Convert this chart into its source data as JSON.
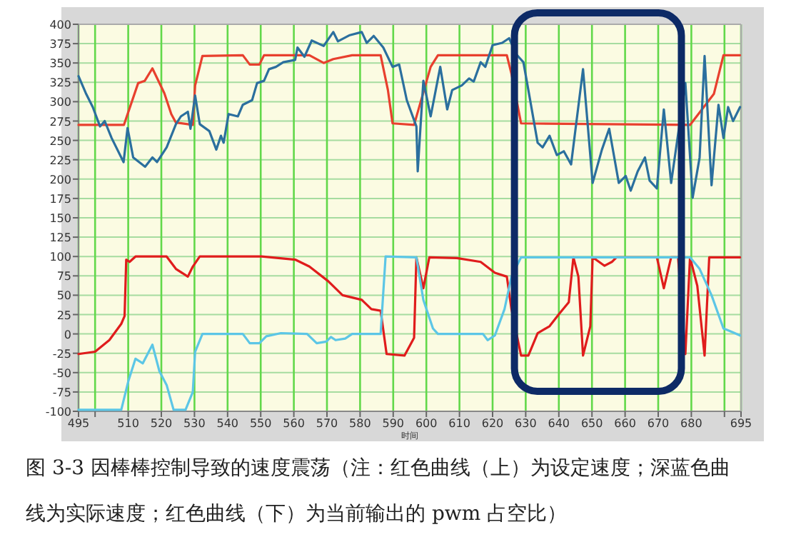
{
  "chart_data": {
    "type": "line",
    "xlabel": "时间",
    "annotations": [
      "图 3-3 因棒棒控制导致的速度震荡（注：红色曲线（上）为设定速度；深蓝色曲线为实际速度；红色曲线（下）为当前输出的 pwm 占空比）"
    ],
    "xlim": [
      495,
      695
    ],
    "ylim": [
      -100,
      400
    ],
    "xticks": [
      495,
      {
        "value": 500,
        "label": null
      },
      510,
      520,
      530,
      540,
      550,
      560,
      570,
      580,
      590,
      600,
      610,
      620,
      630,
      640,
      650,
      660,
      670,
      680,
      {
        "value": 690,
        "label": null
      },
      695
    ],
    "yticks": [
      -100,
      -75,
      -50,
      -25,
      0,
      25,
      50,
      75,
      100,
      125,
      150,
      175,
      200,
      225,
      250,
      275,
      300,
      325,
      350,
      375,
      400
    ],
    "grid": true,
    "series": [
      {
        "color": "#e8402e",
        "x": [
          495,
          508.7,
          513,
          515,
          517.3,
          520.9,
          523,
          524.4,
          529.5,
          530.2,
          532.4,
          544.6,
          546.7,
          549.6,
          551,
          564.7,
          569,
          571.9,
          577.6,
          586.2,
          588.4,
          589.8,
          596.3,
          601.3,
          603.5,
          624.3,
          625.7,
          628.6,
          679.6,
          686.8,
          689.7,
          694.7
        ],
        "values": [
          270,
          270,
          324,
          327,
          343,
          311,
          284,
          273,
          270,
          321,
          359,
          360,
          348,
          348,
          360,
          360,
          350,
          355,
          360,
          360,
          315,
          272,
          270,
          345,
          360,
          360,
          336,
          272,
          270,
          310,
          360,
          360
        ]
      },
      {
        "color": "#2b6f9e",
        "x": [
          495,
          497.2,
          499.3,
          501.5,
          502.9,
          505,
          508.6,
          509.8,
          511.5,
          515.1,
          517.3,
          518.7,
          521.6,
          524.4,
          525.9,
          528,
          528.8,
          530.2,
          531.6,
          534.5,
          536.6,
          538,
          538.8,
          540.3,
          543.1,
          544.6,
          547.4,
          548.9,
          551,
          552.5,
          554.6,
          556.8,
          560.4,
          561.1,
          563.2,
          565.4,
          569,
          571.9,
          573.3,
          576.9,
          580.5,
          582,
          584.1,
          587,
          589.8,
          591.8,
          594.1,
          597,
          597.4,
          599.1,
          601.3,
          604.2,
          606.3,
          607.8,
          610.7,
          612.9,
          614.3,
          616.4,
          617.8,
          620,
          622.9,
          625,
          627.2,
          629.3,
          630.8,
          633.6,
          635.1,
          637.2,
          639.4,
          641.5,
          643.7,
          647.3,
          650.2,
          653,
          655.2,
          658.1,
          660.2,
          661.7,
          663.8,
          666,
          667.4,
          669.6,
          671.7,
          673.9,
          678.2,
          680.4,
          682.5,
          684,
          686.1,
          688.2,
          689.7,
          691.1,
          692.6,
          694.7
        ],
        "values": [
          333,
          311,
          293,
          268,
          275,
          253,
          222,
          266,
          228,
          216,
          228,
          222,
          241,
          271,
          281,
          287,
          265,
          308,
          271,
          262,
          238,
          256,
          247,
          284,
          281,
          296,
          302,
          324,
          327,
          342,
          345,
          351,
          354,
          370,
          358,
          379,
          372,
          390,
          378,
          386,
          390,
          376,
          385,
          370,
          345,
          348,
          302,
          268,
          210,
          327,
          281,
          345,
          290,
          315,
          321,
          330,
          326,
          351,
          345,
          373,
          376,
          382,
          361,
          351,
          315,
          247,
          241,
          256,
          231,
          236,
          219,
          342,
          195,
          238,
          265,
          195,
          204,
          185,
          210,
          228,
          198,
          188,
          290,
          195,
          324,
          176,
          228,
          359,
          192,
          296,
          253,
          293,
          275,
          293
        ]
      },
      {
        "color": "#e01c1c",
        "x": [
          495,
          500,
          504.3,
          507.9,
          508.9,
          509.4,
          510.4,
          512.2,
          521.6,
          524.4,
          528,
          529.5,
          531.6,
          550.3,
          560.4,
          564.7,
          570.4,
          574.7,
          580.5,
          583.4,
          586.2,
          588,
          593.4,
          596.3,
          597,
          599.1,
          600.9,
          609.2,
          616.4,
          620.7,
          624.3,
          625.7,
          628.6,
          630.8,
          633.6,
          637.2,
          640.1,
          643,
          644.4,
          645.9,
          647.3,
          649.5,
          650.2,
          653.8,
          656,
          657.4,
          669.6,
          671.7,
          673.9,
          676,
          678.2,
          679.6,
          681.8,
          684,
          685.4,
          694.7
        ],
        "values": [
          -26,
          -23,
          -8,
          13,
          23,
          96,
          93,
          100,
          100,
          84,
          74,
          87,
          100,
          100,
          96,
          87,
          68,
          50,
          44,
          32,
          30,
          -26,
          -28,
          -5,
          99,
          59,
          99,
          98,
          93,
          79,
          74,
          32,
          -28,
          -28,
          1,
          10,
          26,
          41,
          99,
          74,
          -28,
          10,
          99,
          88,
          93,
          99,
          99,
          59,
          99,
          99,
          -26,
          99,
          62,
          -28,
          99,
          99
        ]
      },
      {
        "color": "#5cc6e6",
        "x": [
          495,
          507.9,
          510.1,
          512.2,
          514.4,
          517.3,
          519.4,
          521.6,
          523.7,
          527.3,
          529.5,
          530.2,
          532.4,
          544.6,
          546.7,
          549.6,
          551.7,
          556.1,
          564,
          566.9,
          569.8,
          571.2,
          572.6,
          575.5,
          577.6,
          586.2,
          587.7,
          597,
          599.1,
          602,
          603.5,
          617.1,
          618.5,
          620.7,
          623.6,
          625.7,
          628.6,
          679.6,
          682.5,
          686.1,
          689.7,
          692.6,
          694.7
        ],
        "values": [
          -98,
          -98,
          -60,
          -32,
          -38,
          -14,
          -48,
          -66,
          -98,
          -98,
          -75,
          -23,
          0,
          0,
          -12,
          -12,
          -3,
          1,
          0,
          -12,
          -10,
          -4,
          -8,
          -6,
          0,
          0,
          100,
          99,
          44,
          7,
          0,
          0,
          -8,
          -2,
          32,
          74,
          99,
          99,
          84,
          50,
          7,
          2,
          -2
        ]
      }
    ]
  }
}
